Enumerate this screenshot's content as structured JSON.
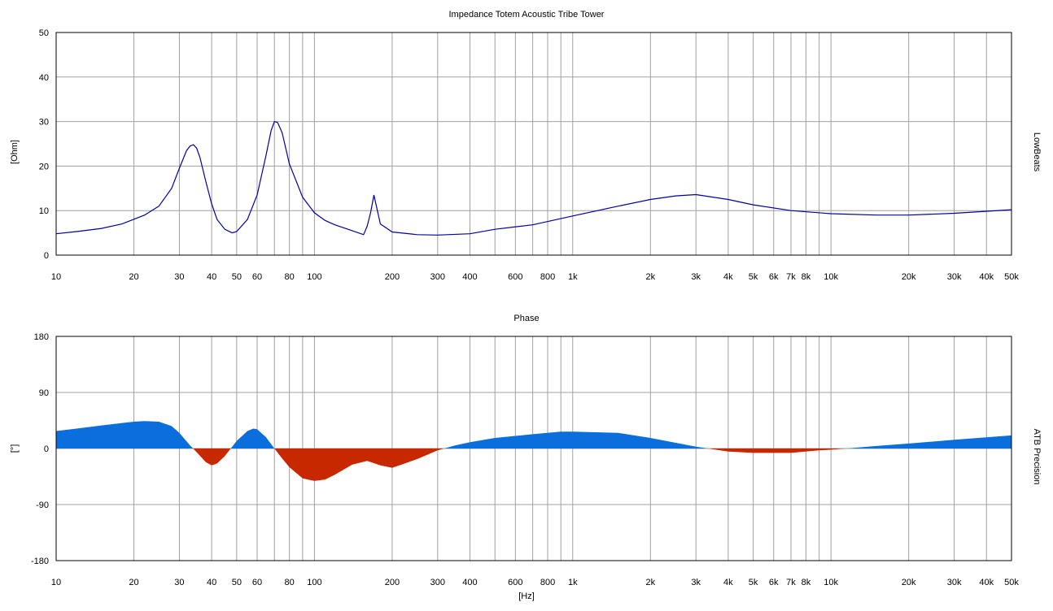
{
  "chart_data": [
    {
      "type": "line",
      "title": "Impedance Totem Acoustic Tribe Tower",
      "ylabel": "[Ohm]",
      "right_label": "LowBeats",
      "xscale": "log",
      "xlim": [
        10,
        50000
      ],
      "ylim": [
        0,
        50
      ],
      "yticks": [
        0,
        10,
        20,
        30,
        40,
        50
      ],
      "xticks": [
        {
          "v": 10,
          "label": "10"
        },
        {
          "v": 20,
          "label": "20"
        },
        {
          "v": 30,
          "label": "30"
        },
        {
          "v": 40,
          "label": "40"
        },
        {
          "v": 50,
          "label": "50"
        },
        {
          "v": 60,
          "label": "60"
        },
        {
          "v": 80,
          "label": "80"
        },
        {
          "v": 100,
          "label": "100"
        },
        {
          "v": 200,
          "label": "200"
        },
        {
          "v": 300,
          "label": "300"
        },
        {
          "v": 400,
          "label": "400"
        },
        {
          "v": 600,
          "label": "600"
        },
        {
          "v": 800,
          "label": "800"
        },
        {
          "v": 1000,
          "label": "1k"
        },
        {
          "v": 2000,
          "label": "2k"
        },
        {
          "v": 3000,
          "label": "3k"
        },
        {
          "v": 4000,
          "label": "4k"
        },
        {
          "v": 5000,
          "label": "5k"
        },
        {
          "v": 6000,
          "label": "6k"
        },
        {
          "v": 7000,
          "label": "7k"
        },
        {
          "v": 8000,
          "label": "8k"
        },
        {
          "v": 10000,
          "label": "10k"
        },
        {
          "v": 20000,
          "label": "20k"
        },
        {
          "v": 30000,
          "label": "30k"
        },
        {
          "v": 40000,
          "label": "40k"
        },
        {
          "v": 50000,
          "label": "50k"
        }
      ],
      "grid": true,
      "line_color": "#0000a0",
      "series": [
        {
          "x": [
            10,
            12,
            15,
            18,
            22,
            25,
            28,
            30,
            32,
            33,
            34,
            35,
            36,
            38,
            40,
            42,
            45,
            48,
            50,
            55,
            60,
            65,
            68,
            70,
            72,
            75,
            80,
            90,
            100,
            110,
            120,
            140,
            155,
            160,
            165,
            170,
            180,
            200,
            250,
            300,
            400,
            500,
            700,
            1000,
            1500,
            2000,
            2500,
            3000,
            4000,
            5000,
            7000,
            10000,
            15000,
            20000,
            30000,
            50000
          ],
          "y": [
            4.8,
            5.3,
            6.0,
            7.0,
            9.0,
            11.0,
            15.0,
            19.5,
            23.5,
            24.5,
            24.8,
            24.0,
            22.0,
            16.5,
            11.5,
            8.0,
            5.8,
            5.0,
            5.3,
            8.0,
            13.5,
            22.5,
            28.0,
            30.0,
            29.8,
            27.5,
            20.5,
            13.0,
            9.5,
            7.8,
            6.8,
            5.5,
            4.6,
            6.5,
            9.5,
            13.5,
            7.0,
            5.2,
            4.6,
            4.5,
            4.8,
            5.8,
            6.8,
            8.8,
            11.0,
            12.5,
            13.3,
            13.6,
            12.5,
            11.3,
            10.0,
            9.3,
            9.0,
            9.0,
            9.4,
            10.2
          ]
        }
      ]
    },
    {
      "type": "area",
      "title": "Phase",
      "ylabel": "[°]",
      "xlabel": "[Hz]",
      "right_label": "ATB Precision",
      "xscale": "log",
      "xlim": [
        10,
        50000
      ],
      "ylim": [
        -180,
        180
      ],
      "yticks": [
        -180,
        -90,
        0,
        90,
        180
      ],
      "xticks": [
        {
          "v": 10,
          "label": "10"
        },
        {
          "v": 20,
          "label": "20"
        },
        {
          "v": 30,
          "label": "30"
        },
        {
          "v": 40,
          "label": "40"
        },
        {
          "v": 50,
          "label": "50"
        },
        {
          "v": 60,
          "label": "60"
        },
        {
          "v": 80,
          "label": "80"
        },
        {
          "v": 100,
          "label": "100"
        },
        {
          "v": 200,
          "label": "200"
        },
        {
          "v": 300,
          "label": "300"
        },
        {
          "v": 400,
          "label": "400"
        },
        {
          "v": 600,
          "label": "600"
        },
        {
          "v": 800,
          "label": "800"
        },
        {
          "v": 1000,
          "label": "1k"
        },
        {
          "v": 2000,
          "label": "2k"
        },
        {
          "v": 3000,
          "label": "3k"
        },
        {
          "v": 4000,
          "label": "4k"
        },
        {
          "v": 5000,
          "label": "5k"
        },
        {
          "v": 6000,
          "label": "6k"
        },
        {
          "v": 7000,
          "label": "7k"
        },
        {
          "v": 8000,
          "label": "8k"
        },
        {
          "v": 10000,
          "label": "10k"
        },
        {
          "v": 20000,
          "label": "20k"
        },
        {
          "v": 30000,
          "label": "30k"
        },
        {
          "v": 40000,
          "label": "40k"
        },
        {
          "v": 50000,
          "label": "50k"
        }
      ],
      "grid": true,
      "positive_color": "#0a6fdc",
      "negative_color": "#c82800",
      "series": [
        {
          "x": [
            10,
            12,
            15,
            18,
            20,
            22,
            25,
            28,
            30,
            33,
            35,
            38,
            40,
            42,
            45,
            50,
            55,
            58,
            60,
            65,
            70,
            75,
            80,
            90,
            100,
            110,
            120,
            140,
            160,
            180,
            200,
            220,
            250,
            300,
            350,
            400,
            500,
            700,
            900,
            1000,
            1500,
            2000,
            3000,
            4000,
            5000,
            7000,
            9000,
            10000,
            15000,
            20000,
            30000,
            50000
          ],
          "y": [
            28,
            32,
            37,
            41,
            43,
            44,
            43,
            36,
            25,
            5,
            -6,
            -22,
            -27,
            -24,
            -12,
            12,
            28,
            32,
            31,
            18,
            0,
            -16,
            -30,
            -48,
            -52,
            -50,
            -42,
            -26,
            -20,
            -27,
            -31,
            -25,
            -17,
            -3,
            5,
            10,
            17,
            23,
            27,
            27,
            25,
            17,
            3,
            -5,
            -7,
            -7,
            -3,
            -2,
            4,
            8,
            14,
            21
          ]
        }
      ]
    }
  ]
}
